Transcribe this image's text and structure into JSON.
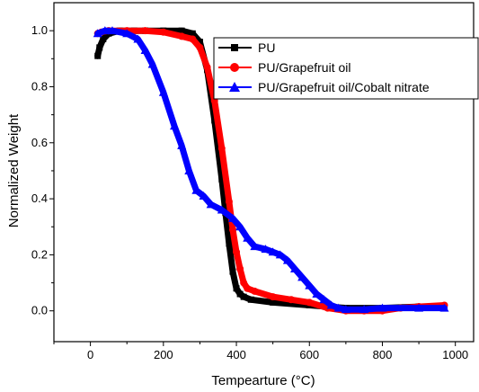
{
  "chart_data": {
    "type": "line",
    "title": "",
    "xlabel": "Tempearture (°C)",
    "ylabel": "Normalized Weight",
    "xlim": [
      -100,
      1050
    ],
    "ylim": [
      -0.11,
      1.1
    ],
    "xticks": [
      0,
      200,
      400,
      600,
      800,
      1000
    ],
    "yticks": [
      0.0,
      0.2,
      0.4,
      0.6,
      0.8,
      1.0
    ],
    "xtick_labels": [
      "0",
      "200",
      "400",
      "600",
      "800",
      "1000"
    ],
    "ytick_labels": [
      "0.0",
      "0.2",
      "0.4",
      "0.6",
      "0.8",
      "1.0"
    ],
    "grid": false,
    "legend_position": "top-right",
    "series": [
      {
        "name": "PU",
        "color": "#000000",
        "marker": "square",
        "x": [
          20,
          25,
          35,
          50,
          80,
          120,
          150,
          200,
          250,
          280,
          300,
          320,
          340,
          360,
          370,
          380,
          390,
          400,
          410,
          420,
          440,
          500,
          600,
          700,
          800,
          900,
          970
        ],
        "y": [
          0.91,
          0.94,
          0.97,
          0.99,
          1.0,
          1.0,
          1.0,
          1.0,
          1.0,
          0.99,
          0.96,
          0.86,
          0.68,
          0.47,
          0.35,
          0.24,
          0.14,
          0.08,
          0.06,
          0.05,
          0.04,
          0.03,
          0.02,
          0.01,
          0.01,
          0.015,
          0.015
        ]
      },
      {
        "name": "PU/Grapefruit oil",
        "color": "#ff0000",
        "marker": "circle",
        "x": [
          20,
          30,
          50,
          100,
          150,
          200,
          250,
          280,
          300,
          320,
          340,
          360,
          380,
          390,
          400,
          410,
          420,
          430,
          450,
          500,
          550,
          600,
          650,
          700,
          750,
          800,
          850,
          900,
          970
        ],
        "y": [
          0.99,
          0.995,
          1.0,
          1.0,
          1.0,
          0.995,
          0.98,
          0.97,
          0.94,
          0.87,
          0.75,
          0.58,
          0.39,
          0.29,
          0.21,
          0.15,
          0.1,
          0.08,
          0.07,
          0.05,
          0.04,
          0.03,
          0.01,
          0.0,
          0.0,
          0.0,
          0.01,
          0.015,
          0.02
        ]
      },
      {
        "name": "PU/Grapefruit oil/Cobalt nitrate",
        "color": "#0000ff",
        "marker": "triangle",
        "x": [
          20,
          40,
          60,
          100,
          130,
          150,
          170,
          200,
          230,
          250,
          270,
          290,
          310,
          330,
          360,
          390,
          410,
          430,
          450,
          480,
          500,
          520,
          540,
          560,
          580,
          600,
          620,
          640,
          660,
          680,
          700,
          750,
          800,
          900,
          970
        ],
        "y": [
          0.99,
          1.0,
          1.0,
          0.99,
          0.97,
          0.93,
          0.88,
          0.78,
          0.66,
          0.59,
          0.5,
          0.43,
          0.41,
          0.38,
          0.36,
          0.33,
          0.3,
          0.26,
          0.23,
          0.22,
          0.21,
          0.2,
          0.18,
          0.15,
          0.12,
          0.09,
          0.06,
          0.04,
          0.02,
          0.01,
          0.005,
          0.005,
          0.01,
          0.01,
          0.01
        ]
      }
    ]
  }
}
